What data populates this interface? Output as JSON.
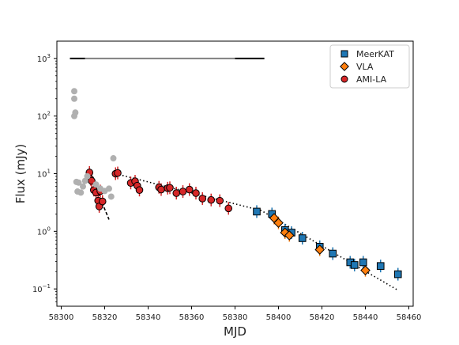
{
  "chart_data": {
    "type": "scatter",
    "title": "",
    "xlabel": "MJD",
    "ylabel": "Flux (mJy)",
    "xlim": [
      58298,
      58462
    ],
    "ylim_log10": [
      -1.3,
      3.3
    ],
    "y_scale": "log",
    "x_ticks": [
      {
        "value": 58300,
        "label": "58300"
      },
      {
        "value": 58320,
        "label": "58320"
      },
      {
        "value": 58340,
        "label": "58340"
      },
      {
        "value": 58360,
        "label": "58360"
      },
      {
        "value": 58380,
        "label": "58380"
      },
      {
        "value": 58400,
        "label": "58400"
      },
      {
        "value": 58420,
        "label": "58420"
      },
      {
        "value": 58440,
        "label": "58440"
      },
      {
        "value": 58460,
        "label": "58460"
      }
    ],
    "y_ticks": [
      {
        "value": 0.1,
        "base": "10",
        "exp": "−1"
      },
      {
        "value": 1,
        "base": "10",
        "exp": "0"
      },
      {
        "value": 10,
        "base": "10",
        "exp": "1"
      },
      {
        "value": 100,
        "base": "10",
        "exp": "2"
      },
      {
        "value": 1000,
        "base": "10",
        "exp": "3"
      }
    ],
    "grid": false,
    "legend_position": "top-right",
    "legend": [
      {
        "label": "MeerKAT",
        "marker": "square",
        "color": "#1f77b4"
      },
      {
        "label": "VLA",
        "marker": "diamond",
        "color": "#ff7f0e"
      },
      {
        "label": "AMI-LA",
        "marker": "circle",
        "color": "#d62728"
      }
    ],
    "series": [
      {
        "name": "MeerKAT",
        "marker": "square",
        "color": "#1f77b4",
        "points": [
          {
            "x": 58390,
            "y": 2.2
          },
          {
            "x": 58397,
            "y": 2.0
          },
          {
            "x": 58403,
            "y": 1.05
          },
          {
            "x": 58406,
            "y": 0.95
          },
          {
            "x": 58411,
            "y": 0.76
          },
          {
            "x": 58419,
            "y": 0.54
          },
          {
            "x": 58425,
            "y": 0.41
          },
          {
            "x": 58433,
            "y": 0.29
          },
          {
            "x": 58435,
            "y": 0.26
          },
          {
            "x": 58439,
            "y": 0.29
          },
          {
            "x": 58447,
            "y": 0.25
          },
          {
            "x": 58455,
            "y": 0.18
          }
        ]
      },
      {
        "name": "VLA",
        "marker": "diamond",
        "color": "#ff7f0e",
        "points": [
          {
            "x": 58398,
            "y": 1.7
          },
          {
            "x": 58400,
            "y": 1.4
          },
          {
            "x": 58403,
            "y": 0.95
          },
          {
            "x": 58405,
            "y": 0.85
          },
          {
            "x": 58419,
            "y": 0.48
          },
          {
            "x": 58440,
            "y": 0.21
          }
        ]
      },
      {
        "name": "AMI-LA",
        "marker": "circle",
        "color": "#d62728",
        "points": [
          {
            "x": 58313,
            "y": 10.5
          },
          {
            "x": 58313.5,
            "y": 8.0
          },
          {
            "x": 58314,
            "y": 7.5
          },
          {
            "x": 58315,
            "y": 5.2
          },
          {
            "x": 58316,
            "y": 4.7
          },
          {
            "x": 58317,
            "y": 3.4
          },
          {
            "x": 58317.5,
            "y": 2.7
          },
          {
            "x": 58318,
            "y": 5.0
          },
          {
            "x": 58319,
            "y": 3.3
          },
          {
            "x": 58325,
            "y": 10.0
          },
          {
            "x": 58326,
            "y": 10.3
          },
          {
            "x": 58332,
            "y": 6.9
          },
          {
            "x": 58334,
            "y": 7.4
          },
          {
            "x": 58335,
            "y": 6.2
          },
          {
            "x": 58336,
            "y": 5.2
          },
          {
            "x": 58345,
            "y": 5.8
          },
          {
            "x": 58346,
            "y": 5.3
          },
          {
            "x": 58349,
            "y": 5.6
          },
          {
            "x": 58350,
            "y": 5.7
          },
          {
            "x": 58353,
            "y": 4.6
          },
          {
            "x": 58356,
            "y": 4.9
          },
          {
            "x": 58359,
            "y": 5.3
          },
          {
            "x": 58362,
            "y": 4.6
          },
          {
            "x": 58365,
            "y": 3.7
          },
          {
            "x": 58369,
            "y": 3.5
          },
          {
            "x": 58373,
            "y": 3.4
          },
          {
            "x": 58377,
            "y": 2.5
          }
        ]
      },
      {
        "name": "",
        "marker": "circle",
        "color": "#b0b0b0",
        "points": [
          {
            "x": 58306,
            "y": 270
          },
          {
            "x": 58306,
            "y": 200
          },
          {
            "x": 58306.5,
            "y": 115
          },
          {
            "x": 58306,
            "y": 100
          },
          {
            "x": 58307,
            "y": 7.2
          },
          {
            "x": 58308,
            "y": 7.0
          },
          {
            "x": 58307.5,
            "y": 4.9
          },
          {
            "x": 58309,
            "y": 4.7
          },
          {
            "x": 58310,
            "y": 6.0
          },
          {
            "x": 58311,
            "y": 7.5
          },
          {
            "x": 58312,
            "y": 9.0
          },
          {
            "x": 58316,
            "y": 6.5
          },
          {
            "x": 58318,
            "y": 5.5
          },
          {
            "x": 58320,
            "y": 5.0
          },
          {
            "x": 58322,
            "y": 5.5
          },
          {
            "x": 58323,
            "y": 4.0
          },
          {
            "x": 58324,
            "y": 18.5
          }
        ]
      }
    ],
    "lines": [
      {
        "style": "dotted",
        "points": [
          [
            58325,
            10.0
          ],
          [
            58392,
            2.3
          ],
          [
            58455,
            0.095
          ]
        ]
      },
      {
        "style": "dashed",
        "points": [
          [
            58317,
            4.6
          ],
          [
            58322,
            1.6
          ]
        ]
      }
    ],
    "bars": [
      {
        "y": 1000,
        "x_start": 58304,
        "x_end": 58311,
        "color": "#000000"
      },
      {
        "y": 1000,
        "x_start": 58311,
        "x_end": 58380,
        "color": "#808080"
      },
      {
        "y": 1000,
        "x_start": 58380,
        "x_end": 58393.5,
        "color": "#000000"
      }
    ]
  }
}
